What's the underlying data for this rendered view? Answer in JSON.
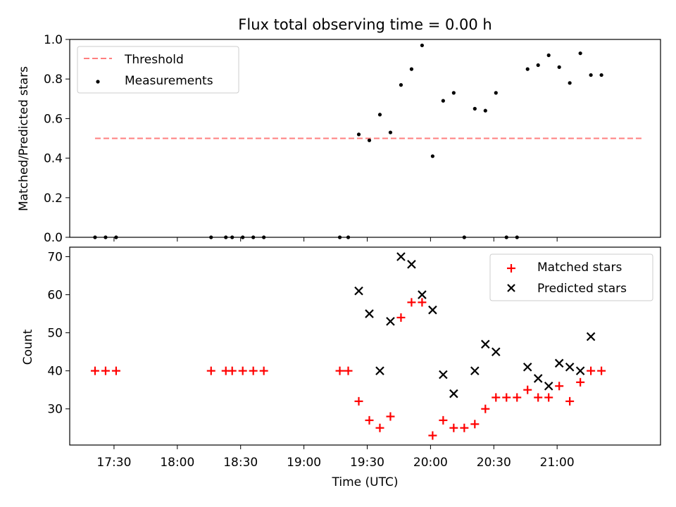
{
  "chart_data": [
    {
      "type": "scatter",
      "title": "Flux total observing time = 0.00 h",
      "xlabel": "",
      "ylabel": "Matched/Predicted stars",
      "xlim": [
        1029,
        1309
      ],
      "ylim": [
        0,
        1.0
      ],
      "yticks": [
        0.0,
        0.2,
        0.4,
        0.6,
        0.8,
        1.0
      ],
      "ytick_labels": [
        "0.0",
        "0.2",
        "0.4",
        "0.6",
        "0.8",
        "1.0"
      ],
      "legend_position": "upper-left",
      "threshold": {
        "name": "Threshold",
        "value": 0.5,
        "x_start": 1041,
        "x_end": 1301,
        "color": "#ff7f7f"
      },
      "measurements": {
        "name": "Measurements",
        "color": "#000000",
        "x": [
          1041,
          1046,
          1051,
          1096,
          1103,
          1106,
          1111,
          1116,
          1121,
          1157,
          1161,
          1166,
          1171,
          1176,
          1181,
          1186,
          1191,
          1196,
          1201,
          1206,
          1211,
          1216,
          1221,
          1226,
          1231,
          1236,
          1241,
          1246,
          1251,
          1256,
          1261,
          1266,
          1271,
          1276,
          1281
        ],
        "y": [
          0.0,
          0.0,
          0.0,
          0.0,
          0.0,
          0.0,
          0.0,
          0.0,
          0.0,
          0.0,
          0.0,
          0.52,
          0.49,
          0.62,
          0.53,
          0.77,
          0.85,
          0.97,
          0.41,
          0.69,
          0.73,
          0.0,
          0.65,
          0.64,
          0.73,
          0.0,
          0.0,
          0.85,
          0.87,
          0.92,
          0.86,
          0.78,
          0.93,
          0.82,
          0.82
        ]
      }
    },
    {
      "type": "scatter",
      "title": "",
      "xlabel": "Time (UTC)",
      "ylabel": "Count",
      "xlim": [
        1029,
        1309
      ],
      "ylim": [
        20.5,
        72.5
      ],
      "yticks": [
        30,
        40,
        50,
        60,
        70
      ],
      "ytick_labels": [
        "30",
        "40",
        "50",
        "60",
        "70"
      ],
      "xticks": [
        1050,
        1080,
        1110,
        1140,
        1170,
        1200,
        1230,
        1260
      ],
      "xtick_labels": [
        "17:30",
        "18:00",
        "18:30",
        "19:00",
        "19:30",
        "20:00",
        "20:30",
        "21:00"
      ],
      "legend_position": "upper-right",
      "series": [
        {
          "name": "Matched stars",
          "marker": "plus",
          "color": "#ff0000",
          "x": [
            1041,
            1046,
            1051,
            1096,
            1103,
            1106,
            1111,
            1116,
            1121,
            1157,
            1161,
            1166,
            1171,
            1176,
            1181,
            1186,
            1191,
            1196,
            1201,
            1206,
            1211,
            1216,
            1221,
            1226,
            1231,
            1236,
            1241,
            1246,
            1251,
            1256,
            1261,
            1266,
            1271,
            1276,
            1281
          ],
          "y": [
            40,
            40,
            40,
            40,
            40,
            40,
            40,
            40,
            40,
            40,
            40,
            32,
            27,
            25,
            28,
            54,
            58,
            58,
            23,
            27,
            25,
            25,
            26,
            30,
            33,
            33,
            33,
            35,
            33,
            33,
            36,
            32,
            37,
            40,
            40
          ]
        },
        {
          "name": "Predicted stars",
          "marker": "x",
          "color": "#000000",
          "x": [
            1166,
            1171,
            1176,
            1181,
            1186,
            1191,
            1196,
            1201,
            1206,
            1211,
            1221,
            1226,
            1231,
            1246,
            1251,
            1256,
            1261,
            1266,
            1271,
            1276
          ],
          "y": [
            61,
            55,
            40,
            53,
            70,
            68,
            60,
            56,
            39,
            34,
            40,
            47,
            45,
            41,
            38,
            36,
            42,
            41,
            40,
            49
          ]
        }
      ]
    }
  ]
}
